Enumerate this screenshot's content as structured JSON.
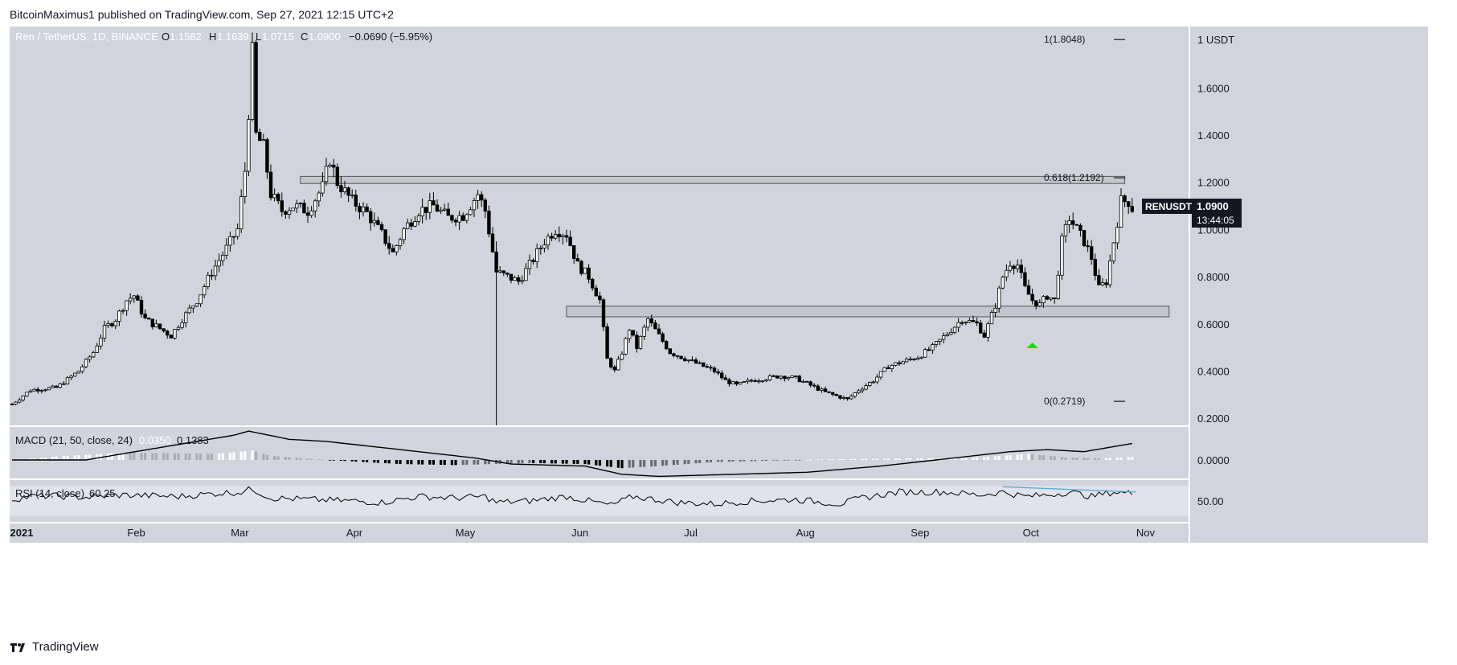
{
  "header": {
    "publisher_line": "BitcoinMaximus1 published on TradingView.com, Sep 27, 2021 12:15 UTC+2"
  },
  "footer": {
    "brand": "TradingView"
  },
  "colors": {
    "panel_bg": "#d1d4dc",
    "candle_up": "#ffffff",
    "candle_down": "#000000",
    "zone_fill": "#bfc2ca",
    "rsi_band": "#e0e3eb",
    "rsi_trend": "#4fa9e3",
    "arrow": "#00e600",
    "price_tag_bg": "#131722"
  },
  "legend": {
    "symbol": "Ren / TetherUS, 1D, BINANCE",
    "o_label": "O",
    "o_value": "1.1582",
    "h_label": "H",
    "h_value": "1.1639",
    "l_label": "L",
    "l_value": "1.0715",
    "c_label": "C",
    "c_value": "1.0900",
    "change": "−0.0690 (−5.95%)"
  },
  "price_tag": {
    "ticker": "RENUSDT",
    "price": "1.0900",
    "countdown": "13:44:05"
  },
  "macd_legend": {
    "label": "MACD (21, 50, close, 24)",
    "v1": "0.0350",
    "v2": "0.1383"
  },
  "rsi_legend": {
    "label": "RSI (14, close)",
    "value": "60.25"
  },
  "fib": [
    {
      "label": "1(1.8048)",
      "price": 1.8048
    },
    {
      "label": "0.618(1.2192)",
      "price": 1.2192
    },
    {
      "label": "0(0.2719)",
      "price": 0.2719
    }
  ],
  "chart_data": {
    "type": "candlestick",
    "title": "Ren / TetherUS, 1D, BINANCE",
    "y_axis": {
      "ticks": [
        "1 USDT",
        "1.6000",
        "1.4000",
        "1.2000",
        "1.0000",
        "0.8000",
        "0.6000",
        "0.4000",
        "0.2000"
      ],
      "range": [
        0.17,
        1.86
      ]
    },
    "x_axis": {
      "ticks": [
        "2021",
        "Feb",
        "Mar",
        "Apr",
        "May",
        "Jun",
        "Jul",
        "Aug",
        "Sep",
        "Oct",
        "Nov"
      ]
    },
    "anchors": [
      [
        0,
        0.26
      ],
      [
        5,
        0.32
      ],
      [
        12,
        0.33
      ],
      [
        18,
        0.4
      ],
      [
        22,
        0.48
      ],
      [
        25,
        0.58
      ],
      [
        28,
        0.62
      ],
      [
        31,
        0.7
      ],
      [
        33,
        0.72
      ],
      [
        36,
        0.62
      ],
      [
        40,
        0.58
      ],
      [
        43,
        0.55
      ],
      [
        46,
        0.62
      ],
      [
        50,
        0.7
      ],
      [
        54,
        0.82
      ],
      [
        58,
        0.92
      ],
      [
        61,
        1.0
      ],
      [
        63,
        1.25
      ],
      [
        65,
        1.75
      ],
      [
        66,
        1.4
      ],
      [
        68,
        1.35
      ],
      [
        70,
        1.15
      ],
      [
        73,
        1.08
      ],
      [
        76,
        1.1
      ],
      [
        80,
        1.08
      ],
      [
        84,
        1.18
      ],
      [
        86,
        1.3
      ],
      [
        88,
        1.2
      ],
      [
        92,
        1.12
      ],
      [
        96,
        1.07
      ],
      [
        100,
        0.98
      ],
      [
        103,
        0.9
      ],
      [
        106,
        1.0
      ],
      [
        110,
        1.08
      ],
      [
        114,
        1.1
      ],
      [
        118,
        1.05
      ],
      [
        122,
        1.06
      ],
      [
        126,
        1.15
      ],
      [
        128,
        1.08
      ],
      [
        131,
        0.82
      ],
      [
        134,
        0.8
      ],
      [
        137,
        0.78
      ],
      [
        140,
        0.85
      ],
      [
        144,
        0.95
      ],
      [
        147,
        1.0
      ],
      [
        150,
        0.98
      ],
      [
        153,
        0.85
      ],
      [
        156,
        0.8
      ],
      [
        159,
        0.7
      ],
      [
        161,
        0.45
      ],
      [
        163,
        0.4
      ],
      [
        165,
        0.48
      ],
      [
        167,
        0.58
      ],
      [
        169,
        0.5
      ],
      [
        172,
        0.62
      ],
      [
        175,
        0.55
      ],
      [
        178,
        0.48
      ],
      [
        181,
        0.46
      ],
      [
        184,
        0.44
      ],
      [
        187,
        0.42
      ],
      [
        190,
        0.4
      ],
      [
        193,
        0.36
      ],
      [
        196,
        0.34
      ],
      [
        200,
        0.36
      ],
      [
        204,
        0.37
      ],
      [
        208,
        0.38
      ],
      [
        212,
        0.37
      ],
      [
        216,
        0.34
      ],
      [
        220,
        0.31
      ],
      [
        224,
        0.29
      ],
      [
        226,
        0.28
      ],
      [
        229,
        0.32
      ],
      [
        233,
        0.36
      ],
      [
        237,
        0.42
      ],
      [
        241,
        0.44
      ],
      [
        245,
        0.46
      ],
      [
        249,
        0.5
      ],
      [
        253,
        0.56
      ],
      [
        257,
        0.62
      ],
      [
        261,
        0.6
      ],
      [
        263,
        0.55
      ],
      [
        266,
        0.68
      ],
      [
        268,
        0.8
      ],
      [
        270,
        0.86
      ],
      [
        272,
        0.85
      ],
      [
        274,
        0.75
      ],
      [
        276,
        0.7
      ],
      [
        278,
        0.68
      ],
      [
        280,
        0.72
      ],
      [
        282,
        0.7
      ],
      [
        284,
        0.95
      ],
      [
        286,
        1.05
      ],
      [
        288,
        1.0
      ],
      [
        290,
        0.95
      ],
      [
        292,
        0.88
      ],
      [
        294,
        0.75
      ],
      [
        296,
        0.78
      ],
      [
        298,
        0.95
      ],
      [
        300,
        1.12
      ],
      [
        302,
        1.12
      ],
      [
        303,
        1.09
      ]
    ],
    "zones": [
      {
        "name": "resistance",
        "price_low": 1.195,
        "price_high": 1.225
      },
      {
        "name": "support",
        "price_low": 0.63,
        "price_high": 0.675
      }
    ],
    "macd": {
      "line_anchors": [
        [
          0,
          0.0
        ],
        [
          20,
          0.0
        ],
        [
          40,
          0.06
        ],
        [
          60,
          0.12
        ],
        [
          64,
          0.14
        ],
        [
          75,
          0.1
        ],
        [
          85,
          0.09
        ],
        [
          100,
          0.06
        ],
        [
          125,
          0.01
        ],
        [
          135,
          -0.02
        ],
        [
          155,
          -0.03
        ],
        [
          165,
          -0.07
        ],
        [
          175,
          -0.08
        ],
        [
          195,
          -0.07
        ],
        [
          215,
          -0.06
        ],
        [
          235,
          -0.03
        ],
        [
          255,
          0.01
        ],
        [
          270,
          0.04
        ],
        [
          280,
          0.05
        ],
        [
          290,
          0.04
        ],
        [
          303,
          0.08
        ]
      ],
      "hist_anchors": [
        [
          0,
          0.0
        ],
        [
          15,
          0.02
        ],
        [
          30,
          0.035
        ],
        [
          55,
          0.03
        ],
        [
          65,
          0.045
        ],
        [
          70,
          0.02
        ],
        [
          85,
          0.0
        ],
        [
          105,
          -0.02
        ],
        [
          120,
          -0.025
        ],
        [
          130,
          -0.02
        ],
        [
          140,
          -0.015
        ],
        [
          155,
          -0.02
        ],
        [
          165,
          -0.04
        ],
        [
          175,
          -0.03
        ],
        [
          190,
          -0.01
        ],
        [
          220,
          0.003
        ],
        [
          240,
          0.007
        ],
        [
          260,
          0.01
        ],
        [
          275,
          0.03
        ],
        [
          285,
          0.012
        ],
        [
          295,
          0.008
        ],
        [
          303,
          0.015
        ]
      ],
      "range": [
        -0.09,
        0.16
      ],
      "ticks": [
        "0.0000"
      ]
    },
    "rsi": {
      "anchors": [
        [
          0,
          52
        ],
        [
          5,
          56
        ],
        [
          10,
          57
        ],
        [
          20,
          55
        ],
        [
          30,
          58
        ],
        [
          45,
          56
        ],
        [
          55,
          60
        ],
        [
          62,
          62
        ],
        [
          65,
          66
        ],
        [
          70,
          54
        ],
        [
          80,
          52
        ],
        [
          92,
          50
        ],
        [
          100,
          48
        ],
        [
          110,
          56
        ],
        [
          120,
          54
        ],
        [
          128,
          56
        ],
        [
          131,
          48
        ],
        [
          140,
          50
        ],
        [
          150,
          56
        ],
        [
          158,
          48
        ],
        [
          162,
          44
        ],
        [
          168,
          56
        ],
        [
          180,
          48
        ],
        [
          190,
          46
        ],
        [
          200,
          50
        ],
        [
          212,
          52
        ],
        [
          224,
          46
        ],
        [
          230,
          54
        ],
        [
          240,
          62
        ],
        [
          252,
          62
        ],
        [
          262,
          58
        ],
        [
          268,
          62
        ],
        [
          274,
          56
        ],
        [
          280,
          58
        ],
        [
          286,
          62
        ],
        [
          292,
          56
        ],
        [
          298,
          62
        ],
        [
          303,
          60
        ]
      ],
      "range": [
        22,
        78
      ],
      "band": [
        30,
        70
      ],
      "ticks": [
        "50.00"
      ]
    }
  }
}
